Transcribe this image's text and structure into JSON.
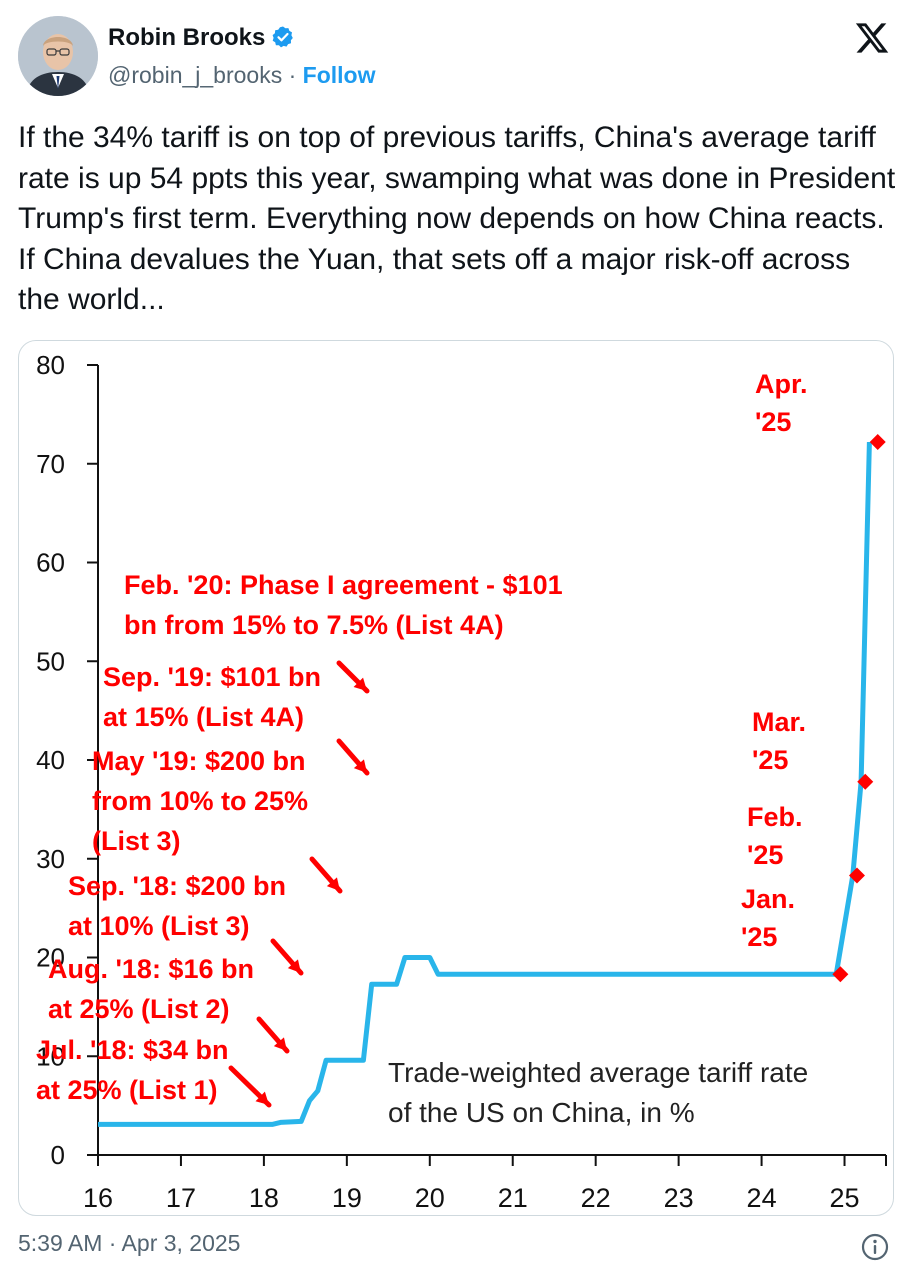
{
  "author": {
    "name": "Robin Brooks",
    "handle": "@robin_j_brooks",
    "separator": "·",
    "follow_label": "Follow"
  },
  "icons": {
    "verified": "verified-badge-icon",
    "platform": "x-logo-icon",
    "info": "info-icon"
  },
  "tweet": {
    "text": "If the 34% tariff is on top of previous tariffs, China's average tariff rate is up 54 ppts this year, swamping what was done in President Trump's first term. Everything now depends on how China reacts. If China devalues the Yuan, that sets off a major risk-off across the world...",
    "timestamp": "5:39 AM · Apr 3, 2025"
  },
  "colors": {
    "line": "#29b5ea",
    "annotation": "#ff0000",
    "link": "#1d9bf0",
    "muted": "#536471"
  },
  "chart_data": {
    "type": "line",
    "title": "",
    "inset_label": [
      "Trade-weighted average tariff rate",
      "of the US on China, in %"
    ],
    "xlabel": "",
    "ylabel": "",
    "xlim": [
      16,
      25.5
    ],
    "ylim": [
      0,
      80
    ],
    "x_ticks": [
      "16",
      "17",
      "18",
      "19",
      "20",
      "21",
      "22",
      "23",
      "24",
      "25"
    ],
    "y_ticks": [
      "0",
      "10",
      "20",
      "30",
      "40",
      "50",
      "60",
      "70",
      "80"
    ],
    "grid": false,
    "series": [
      {
        "x": [
          16.0,
          18.1,
          18.2,
          18.45,
          18.55,
          18.65,
          18.75,
          19.2,
          19.3,
          19.6,
          19.7,
          20.0,
          20.1,
          24.9,
          25.1,
          25.2,
          25.3
        ],
        "y": [
          3.1,
          3.1,
          3.3,
          3.4,
          5.5,
          6.5,
          9.6,
          9.6,
          17.3,
          17.3,
          20.0,
          20.0,
          18.3,
          18.3,
          28.3,
          37.8,
          72.2
        ]
      }
    ],
    "markers": [
      {
        "x": 24.95,
        "y": 18.3,
        "label": [
          "Jan.",
          "'25"
        ]
      },
      {
        "x": 25.15,
        "y": 28.3,
        "label": [
          "Feb.",
          "'25"
        ]
      },
      {
        "x": 25.25,
        "y": 37.8,
        "label": [
          "Mar.",
          "'25"
        ]
      },
      {
        "x": 25.4,
        "y": 72.2,
        "label": [
          "Apr.",
          "'25"
        ]
      }
    ],
    "annotations": [
      {
        "lines": [
          "Feb. '20: Phase I agreement - $101",
          "bn from 15% to 7.5% (List 4A)"
        ]
      },
      {
        "lines": [
          "Sep. '19: $101 bn",
          "at 15% (List 4A)"
        ]
      },
      {
        "lines": [
          "May '19: $200 bn",
          "from 10% to 25%",
          "(List 3)"
        ]
      },
      {
        "lines": [
          "Sep. '18: $200 bn",
          "at 10% (List 3)"
        ]
      },
      {
        "lines": [
          "Aug. '18: $16 bn",
          "at 25% (List 2)"
        ]
      },
      {
        "lines": [
          "Jul. '18: $34 bn",
          "at 25% (List 1)"
        ]
      }
    ]
  }
}
